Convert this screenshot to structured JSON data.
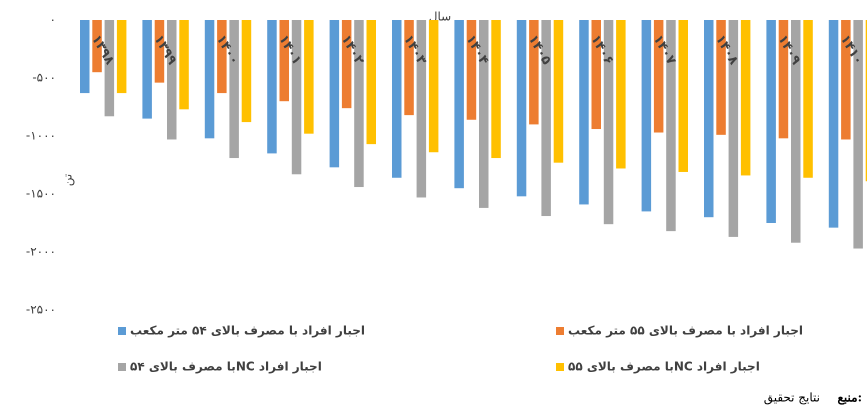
{
  "chart_data": {
    "type": "bar",
    "x_label": "سال",
    "y_label": "تن",
    "categories": [
      "۱۳۹۸",
      "۱۳۹۹",
      "۱۴۰۰",
      "۱۴۰۱",
      "۱۴۰۲",
      "۱۴۰۳",
      "۱۴۰۴",
      "۱۴۰۵",
      "۱۴۰۶",
      "۱۴۰۷",
      "۱۴۰۸",
      "۱۴۰۹",
      "۱۴۱۰"
    ],
    "series": [
      {
        "name": "اجبار افراد با مصرف بالای ۵۴ متر مکعب",
        "color": "#5b9bd5",
        "values": [
          -630,
          -850,
          -1020,
          -1150,
          -1270,
          -1360,
          -1450,
          -1520,
          -1590,
          -1650,
          -1700,
          -1750,
          -1790
        ]
      },
      {
        "name": "اجبار افراد با مصرف بالای ۵۵ متر مکعب",
        "color": "#ed7d31",
        "values": [
          -450,
          -540,
          -630,
          -700,
          -760,
          -820,
          -860,
          -900,
          -940,
          -970,
          -990,
          -1020,
          -1030
        ]
      },
      {
        "name": "اجبار افراد NCبا مصرف بالای ۵۴",
        "color": "#a5a5a5",
        "values": [
          -830,
          -1030,
          -1190,
          -1330,
          -1440,
          -1530,
          -1620,
          -1690,
          -1760,
          -1820,
          -1870,
          -1920,
          -1970
        ]
      },
      {
        "name": "اجبار افراد NCبا مصرف بالای ۵۵",
        "color": "#ffc000",
        "values": [
          -630,
          -770,
          -880,
          -980,
          -1070,
          -1140,
          -1190,
          -1230,
          -1280,
          -1310,
          -1340,
          -1360,
          -1390
        ]
      }
    ],
    "ylim": [
      0,
      -2500
    ],
    "yticks": [
      {
        "value": 0,
        "label": "۰"
      },
      {
        "value": -500,
        "label": "-۵۰۰"
      },
      {
        "value": -1000,
        "label": "-۱۰۰۰"
      },
      {
        "value": -1500,
        "label": "-۱۵۰۰"
      },
      {
        "value": -2000,
        "label": "-۲۰۰۰"
      },
      {
        "value": -2500,
        "label": "-۲۵۰۰"
      }
    ],
    "grid": false,
    "legend": "bottom"
  },
  "source": {
    "label": "منبع:",
    "text": "نتایج تحقیق"
  }
}
